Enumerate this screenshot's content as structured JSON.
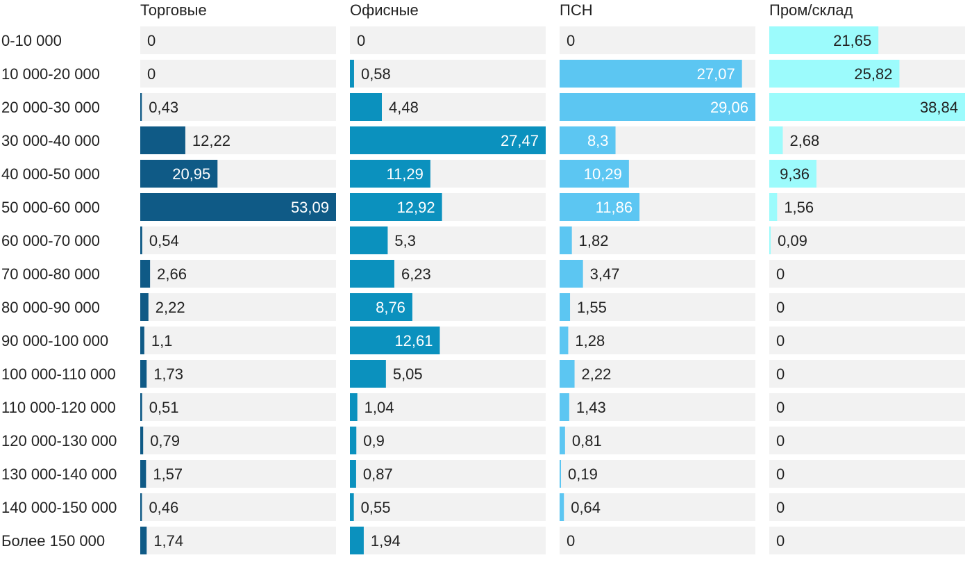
{
  "chart_data": {
    "type": "bar",
    "orientation": "horizontal",
    "layout": "small-multiples",
    "categories": [
      "0-10 000",
      "10 000-20 000",
      "20 000-30 000",
      "30 000-40 000",
      "40 000-50 000",
      "50 000-60 000",
      "60 000-70 000",
      "70 000-80 000",
      "80 000-90 000",
      "90 000-100 000",
      "100 000-110 000",
      "110 000-120 000",
      "120 000-130 000",
      "130 000-140 000",
      "140 000-150 000",
      "Более 150 000"
    ],
    "series": [
      {
        "name": "Торговые",
        "color": "#0f5a86",
        "max": 53.09,
        "values": [
          0,
          0,
          0.43,
          12.22,
          20.95,
          53.09,
          0.54,
          2.66,
          2.22,
          1.1,
          1.73,
          0.51,
          0.79,
          1.57,
          0.46,
          1.74
        ],
        "labels": [
          "0",
          "0",
          "0,43",
          "12,22",
          "20,95",
          "53,09",
          "0,54",
          "2,66",
          "2,22",
          "1,1",
          "1,73",
          "0,51",
          "0,79",
          "1,57",
          "0,46",
          "1,74"
        ]
      },
      {
        "name": "Офисные",
        "color": "#0b91be",
        "max": 27.47,
        "values": [
          0,
          0.58,
          4.48,
          27.47,
          11.29,
          12.92,
          5.3,
          6.23,
          8.76,
          12.61,
          5.05,
          1.04,
          0.9,
          0.87,
          0.55,
          1.94
        ],
        "labels": [
          "0",
          "0,58",
          "4,48",
          "27,47",
          "11,29",
          "12,92",
          "5,3",
          "6,23",
          "8,76",
          "12,61",
          "5,05",
          "1,04",
          "0,9",
          "0,87",
          "0,55",
          "1,94"
        ]
      },
      {
        "name": "ПСН",
        "color": "#5cc6f2",
        "max": 29.06,
        "values": [
          0,
          27.07,
          29.06,
          8.3,
          10.29,
          11.86,
          1.82,
          3.47,
          1.55,
          1.28,
          2.22,
          1.43,
          0.81,
          0.19,
          0.64,
          0
        ],
        "labels": [
          "0",
          "27,07",
          "29,06",
          "8,3",
          "10,29",
          "11,86",
          "1,82",
          "3,47",
          "1,55",
          "1,28",
          "2,22",
          "1,43",
          "0,81",
          "0,19",
          "0,64",
          "0"
        ]
      },
      {
        "name": "Пром/склад",
        "color": "#9cfbfc",
        "max": 38.84,
        "values": [
          21.65,
          25.82,
          38.84,
          2.68,
          9.36,
          1.56,
          0.09,
          0,
          0,
          0,
          0,
          0,
          0,
          0,
          0,
          0
        ],
        "labels": [
          "21,65",
          "25,82",
          "38,84",
          "2,68",
          "9,36",
          "1,56",
          "0,09",
          "0",
          "0",
          "0",
          "0",
          "0",
          "0",
          "0",
          "0",
          "0"
        ]
      }
    ],
    "track_color": "#f2f2f2",
    "grid": false,
    "legend": "none"
  }
}
